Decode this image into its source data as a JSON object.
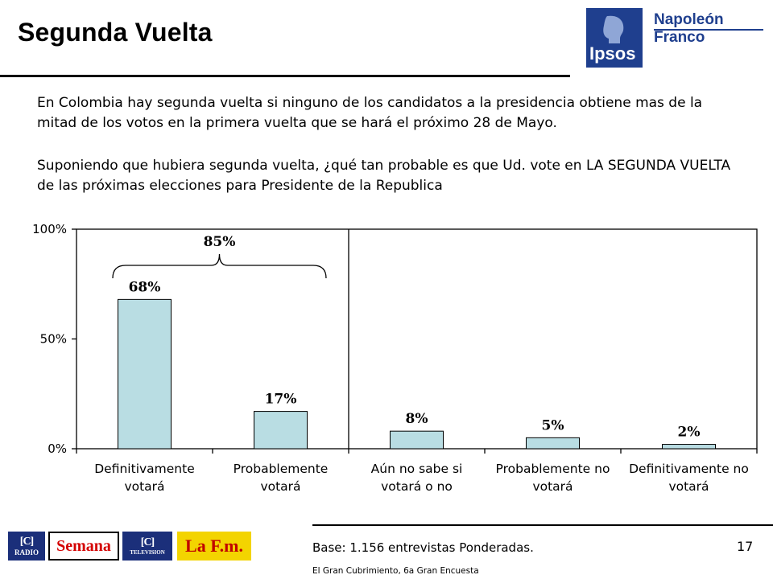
{
  "header": {
    "title": "Segunda Vuelta",
    "logo_ipsos_text": "Ipsos",
    "logo_partner_text": "Napoleón Franco"
  },
  "body": {
    "intro": "En Colombia hay segunda vuelta si ninguno de los candidatos a la presidencia obtiene mas de la mitad de los votos en la primera vuelta que se hará el próximo 28 de Mayo.",
    "question": "Suponiendo que hubiera segunda vuelta, ¿qué tan probable es que Ud. vote  en LA SEGUNDA VUELTA de las próximas elecciones para Presidente de la Republica"
  },
  "chart_data": {
    "type": "bar",
    "categories": [
      [
        "Definitivamente",
        "votará"
      ],
      [
        "Probablemente",
        "votará"
      ],
      [
        "Aún no sabe si",
        "votará o no"
      ],
      [
        "Probablemente no",
        "votará"
      ],
      [
        "Definitivamente no",
        "votará"
      ]
    ],
    "values": [
      68,
      17,
      8,
      5,
      2
    ],
    "value_labels": [
      "68%",
      "17%",
      "8%",
      "5%",
      "2%"
    ],
    "ylim": [
      0,
      100
    ],
    "yticks": [
      0,
      50,
      100
    ],
    "ytick_labels": [
      "0%",
      "50%",
      "100%"
    ],
    "bar_color": "#b9dde3",
    "grid": false,
    "annotation": {
      "label": "85%",
      "spans_categories": [
        0,
        1
      ]
    },
    "separator_after_category": 1
  },
  "footer": {
    "base": "Base: 1.156 entrevistas Ponderadas.",
    "source": "El Gran Cubrimiento, 6a Gran Encuesta",
    "page_number": "17",
    "sponsors": {
      "radio_label": "RADIO",
      "semana": "Semana",
      "tv_label": "TELEVISION",
      "lafm": "La F.m."
    }
  }
}
